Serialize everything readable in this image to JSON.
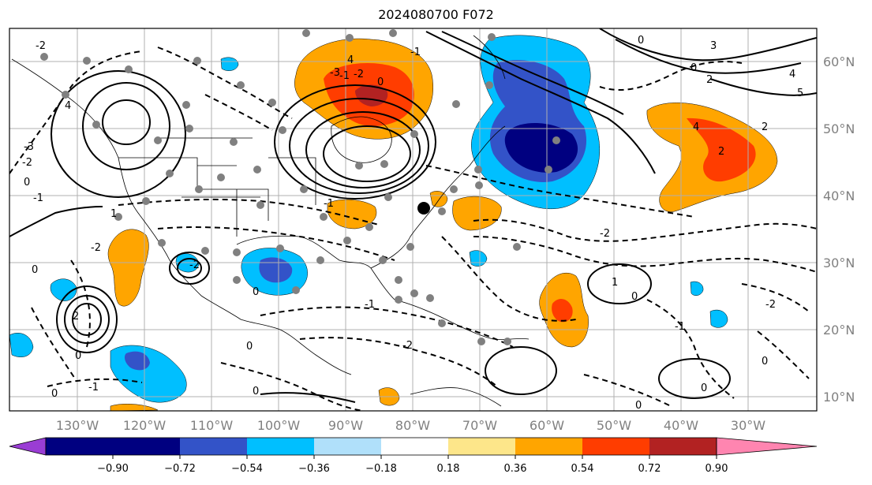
{
  "title": "2024080700 F072",
  "map": {
    "lon_labels": [
      "130°W",
      "120°W",
      "110°W",
      "100°W",
      "90°W",
      "80°W",
      "70°W",
      "60°W",
      "50°W",
      "40°W",
      "30°W"
    ],
    "lat_labels": [
      "60°N",
      "50°N",
      "40°N",
      "30°N",
      "20°N",
      "10°N"
    ],
    "contour_labels": [
      "0",
      "-1",
      "-2",
      "-3",
      "-4",
      "1",
      "2",
      "3",
      "4",
      "5"
    ]
  },
  "colorbar": {
    "ticks": [
      "−0.90",
      "−0.72",
      "−0.54",
      "−0.36",
      "−0.18",
      "0.18",
      "0.36",
      "0.54",
      "0.72",
      "0.90"
    ],
    "colors": {
      "under": "#9a3dd4",
      "c1": "#000080",
      "c2": "#3353c8",
      "c3": "#00bfff",
      "c4": "#b0e0fa",
      "c5": "#ffffff",
      "c6": "#fde68a",
      "c7": "#ffa500",
      "c8": "#ff3d00",
      "c9": "#b22222",
      "over": "#ff85b0"
    }
  }
}
